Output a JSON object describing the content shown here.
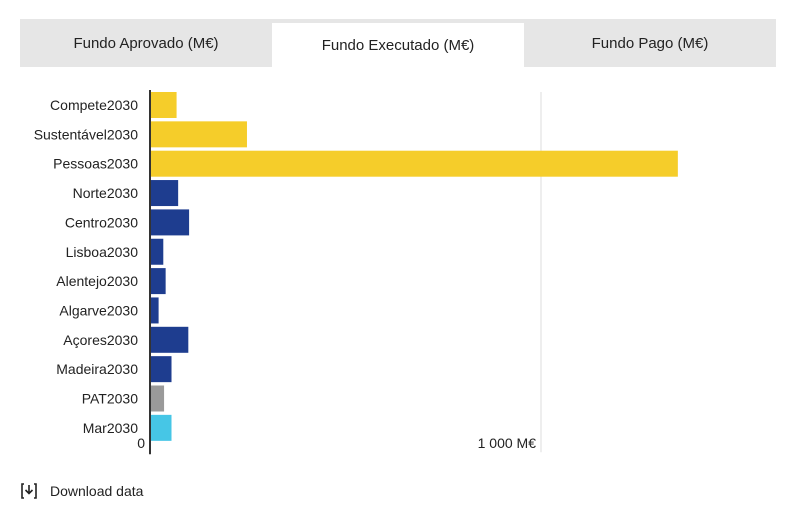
{
  "tabs": [
    {
      "label": "Fundo Aprovado (M€)",
      "active": false
    },
    {
      "label": "Fundo Executado (M€)",
      "active": true
    },
    {
      "label": "Fundo Pago (M€)",
      "active": false
    }
  ],
  "download": {
    "label": "Download data",
    "icon": "download-icon"
  },
  "colors": {
    "yellow": "#f5cd2a",
    "blue": "#1e3d8f",
    "gray": "#9a9a9a",
    "cyan": "#46c6e6",
    "grid": "#dddddd",
    "axis": "#333333"
  },
  "chart_data": {
    "type": "bar",
    "orientation": "horizontal",
    "title": "",
    "xlabel": "",
    "ylabel": "",
    "xlim": [
      0,
      1500
    ],
    "grid": true,
    "categories": [
      "Compete2030",
      "Sustentável2030",
      "Pessoas2030",
      "Norte2030",
      "Centro2030",
      "Lisboa2030",
      "Alentejo2030",
      "Algarve2030",
      "Açores2030",
      "Madeira2030",
      "PAT2030",
      "Mar2030"
    ],
    "values": [
      68,
      248,
      1350,
      72,
      100,
      34,
      40,
      22,
      98,
      55,
      36,
      55
    ],
    "bar_colors": [
      "yellow",
      "yellow",
      "yellow",
      "blue",
      "blue",
      "blue",
      "blue",
      "blue",
      "blue",
      "blue",
      "gray",
      "cyan"
    ],
    "tick_labels": [
      "0",
      "1 000 M€"
    ],
    "tick_values": [
      0,
      1000
    ]
  }
}
